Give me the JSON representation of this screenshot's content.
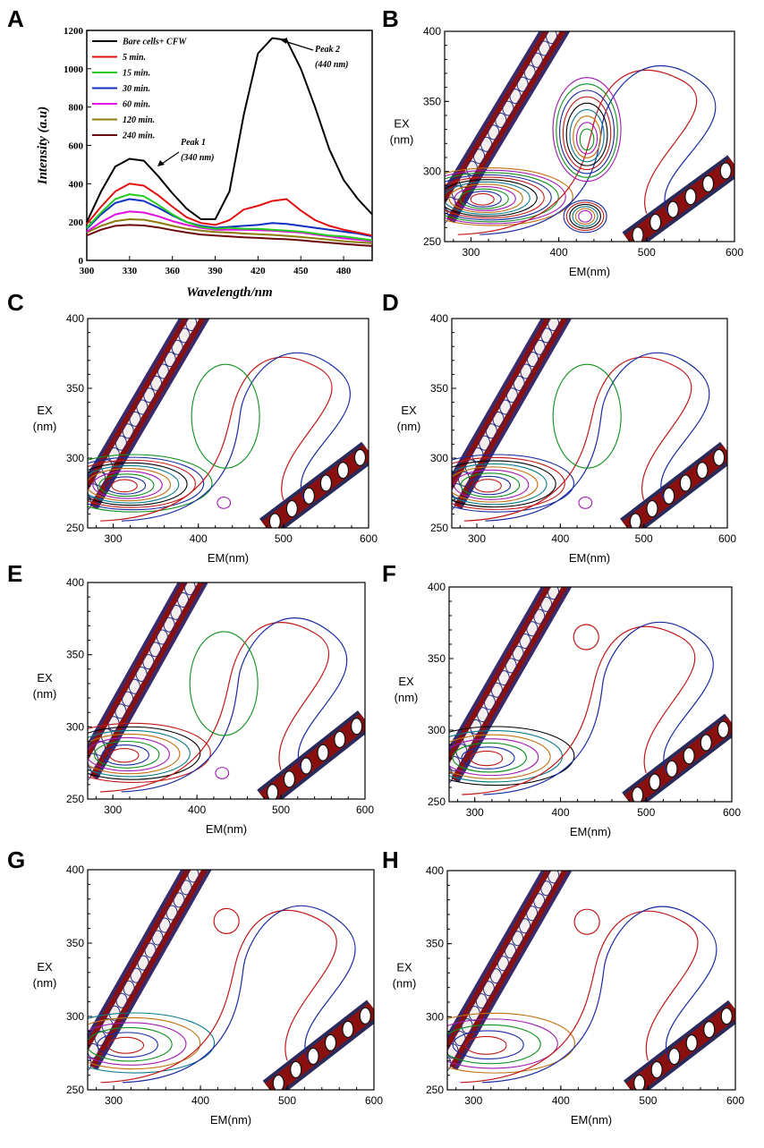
{
  "figure": {
    "panel_a": {
      "label": "A",
      "chart_data": {
        "type": "line",
        "xlabel": "Wavelength/nm",
        "ylabel": "Intensity (a.u)",
        "xlim": [
          300,
          500
        ],
        "ylim": [
          0,
          1200
        ],
        "xticks": [
          300,
          330,
          360,
          390,
          420,
          450,
          480
        ],
        "yticks": [
          0,
          200,
          400,
          600,
          800,
          1000,
          1200
        ],
        "x": [
          300,
          310,
          320,
          330,
          340,
          350,
          360,
          370,
          380,
          390,
          400,
          410,
          420,
          430,
          440,
          450,
          460,
          470,
          480,
          490,
          500
        ],
        "series": [
          {
            "name": "Bare cells+ CFW",
            "color": "#000000",
            "values": [
              200,
              360,
              490,
              530,
              520,
              440,
              350,
              270,
              215,
              215,
              360,
              760,
              1080,
              1160,
              1150,
              1000,
              800,
              580,
              420,
              320,
              240
            ]
          },
          {
            "name": "5 min.",
            "color": "#e01010",
            "values": [
              190,
              280,
              360,
              400,
              390,
              340,
              280,
              225,
              195,
              185,
              210,
              265,
              285,
              310,
              320,
              260,
              210,
              180,
              160,
              145,
              130
            ]
          },
          {
            "name": "15 min.",
            "color": "#22cc22",
            "values": [
              170,
              250,
              320,
              345,
              335,
              290,
              240,
              200,
              175,
              165,
              170,
              165,
              165,
              160,
              155,
              150,
              140,
              130,
              125,
              115,
              105
            ]
          },
          {
            "name": "30 min.",
            "color": "#1030c0",
            "values": [
              165,
              240,
              300,
              320,
              310,
              275,
              235,
              200,
              180,
              170,
              175,
              180,
              185,
              195,
              190,
              180,
              170,
              160,
              150,
              140,
              125
            ]
          },
          {
            "name": "60 min.",
            "color": "#e010e0",
            "values": [
              150,
              200,
              240,
              255,
              250,
              230,
              205,
              185,
              170,
              160,
              160,
              160,
              158,
              155,
              150,
              145,
              135,
              125,
              115,
              108,
              100
            ]
          },
          {
            "name": "120 min.",
            "color": "#8a7a10",
            "values": [
              145,
              180,
              205,
              215,
              212,
              198,
              180,
              165,
              155,
              148,
              145,
              140,
              137,
              133,
              128,
              122,
              115,
              108,
              100,
              95,
              90
            ]
          },
          {
            "name": "240 min.",
            "color": "#6b0a0a",
            "values": [
              130,
              160,
              180,
              185,
              182,
              172,
              158,
              145,
              135,
              130,
              125,
              120,
              117,
              113,
              110,
              105,
              98,
              92,
              86,
              80,
              75
            ]
          }
        ],
        "annotations": [
          {
            "text": "Peak 1",
            "sub": "(340 nm)"
          },
          {
            "text": "Peak 2",
            "sub": "(440 nm)"
          }
        ]
      }
    },
    "contour_panels": [
      {
        "label": "B",
        "peak2_levels": 9,
        "peak1_levels": 12
      },
      {
        "label": "C",
        "peak2_levels": 1,
        "peak1_levels": 10
      },
      {
        "label": "D",
        "peak2_levels": 1,
        "peak1_levels": 9
      },
      {
        "label": "E",
        "peak2_levels": 1,
        "peak1_levels": 8
      },
      {
        "label": "F",
        "peak2_levels": 0,
        "peak1_levels": 7
      },
      {
        "label": "G",
        "peak2_levels": 0,
        "peak1_levels": 6
      },
      {
        "label": "H",
        "peak2_levels": 0,
        "peak1_levels": 5
      }
    ],
    "contour_axes": {
      "type": "heatmap",
      "xlabel": "EM(nm)",
      "ylabel_line1": "EX",
      "ylabel_line2": "(nm)",
      "xlim": [
        270,
        600
      ],
      "ylim": [
        250,
        400
      ],
      "xticks": [
        300,
        400,
        500,
        600
      ],
      "yticks": [
        250,
        300,
        350,
        400
      ]
    },
    "colors": {
      "contour_palette": [
        "#000000",
        "#c01818",
        "#1a2aa0",
        "#109020",
        "#a01ab0",
        "#c07010",
        "#0a7a8a"
      ]
    }
  }
}
